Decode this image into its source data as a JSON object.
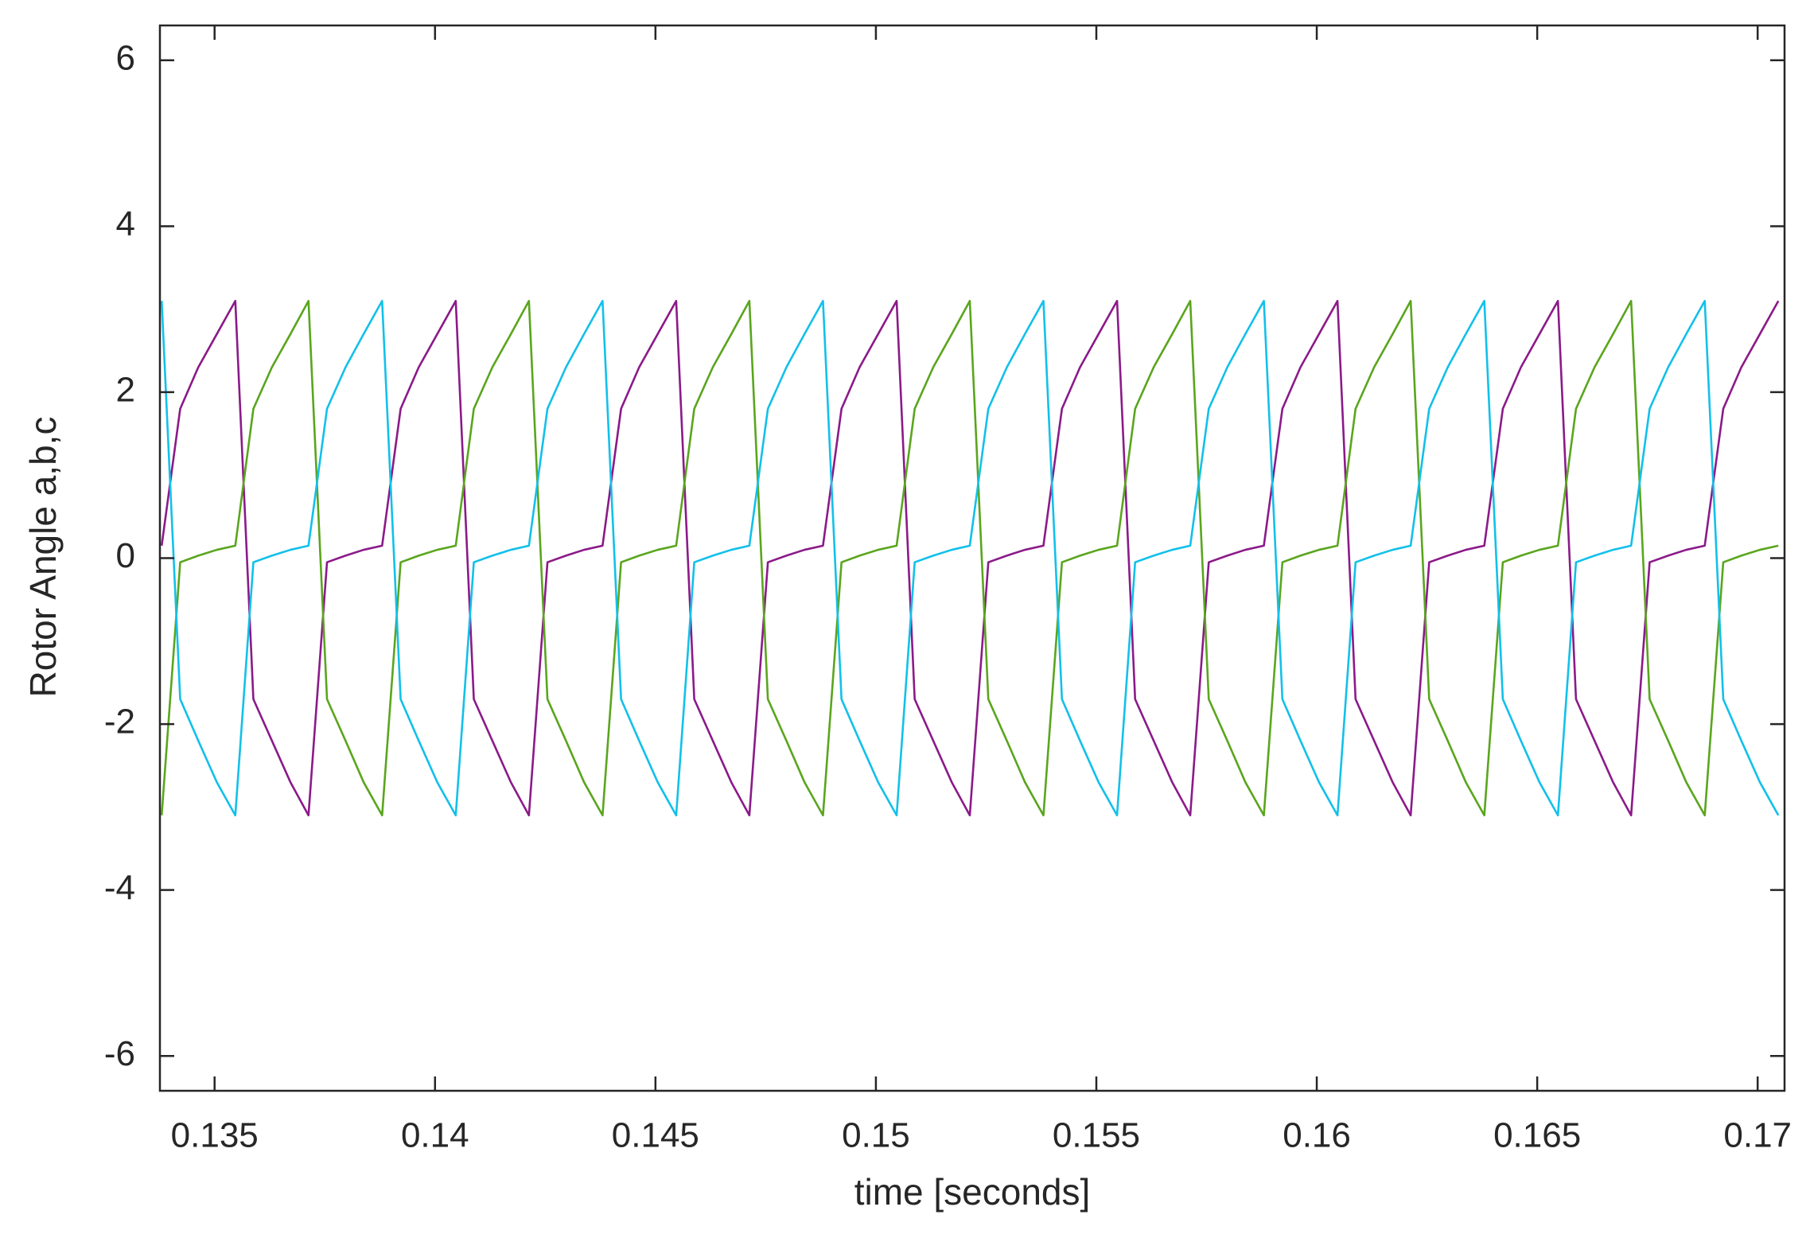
{
  "chart_data": {
    "type": "line",
    "x_label": "time [seconds]",
    "y_label": "Rotor Angle a,b,c",
    "x": [
      0.1338,
      0.13422,
      0.13463,
      0.13505,
      0.13547,
      0.13588,
      0.1363,
      0.13672,
      0.13713,
      0.13755,
      0.13797,
      0.13838,
      0.1388,
      0.13922,
      0.13963,
      0.14005,
      0.14047,
      0.14088,
      0.1413,
      0.14172,
      0.14213,
      0.14255,
      0.14297,
      0.14338,
      0.1438,
      0.14422,
      0.14463,
      0.14505,
      0.14547,
      0.14588,
      0.1463,
      0.14672,
      0.14713,
      0.14755,
      0.14797,
      0.14838,
      0.1488,
      0.14922,
      0.14963,
      0.15005,
      0.15047,
      0.15088,
      0.1513,
      0.15172,
      0.15213,
      0.15255,
      0.15297,
      0.15338,
      0.1538,
      0.15422,
      0.15463,
      0.15505,
      0.15547,
      0.15588,
      0.1563,
      0.15672,
      0.15713,
      0.15755,
      0.15797,
      0.15838,
      0.1588,
      0.15922,
      0.15963,
      0.16005,
      0.16047,
      0.16088,
      0.1613,
      0.16172,
      0.16213,
      0.16255,
      0.16297,
      0.16338,
      0.1638,
      0.16422,
      0.16463,
      0.16505,
      0.16547,
      0.16588,
      0.1663,
      0.16672,
      0.16713,
      0.16755,
      0.16797,
      0.16838,
      0.1688,
      0.16922,
      0.16963,
      0.17005,
      0.17047
    ],
    "series": [
      {
        "color": "#8b1a89",
        "values": [
          0.15,
          1.8,
          2.3,
          2.7,
          3.1,
          -1.7,
          -2.2,
          -2.7,
          -3.1,
          -0.05,
          0.03,
          0.1,
          0.15,
          1.8,
          2.3,
          2.7,
          3.1,
          -1.7,
          -2.2,
          -2.7,
          -3.1,
          -0.05,
          0.03,
          0.1,
          0.15,
          1.8,
          2.3,
          2.7,
          3.1,
          -1.7,
          -2.2,
          -2.7,
          -3.1,
          -0.05,
          0.03,
          0.1,
          0.15,
          1.8,
          2.3,
          2.7,
          3.1,
          -1.7,
          -2.2,
          -2.7,
          -3.1,
          -0.05,
          0.03,
          0.1,
          0.15,
          1.8,
          2.3,
          2.7,
          3.1,
          -1.7,
          -2.2,
          -2.7,
          -3.1,
          -0.05,
          0.03,
          0.1,
          0.15,
          1.8,
          2.3,
          2.7,
          3.1,
          -1.7,
          -2.2,
          -2.7,
          -3.1,
          -0.05,
          0.03,
          0.1,
          0.15,
          1.8,
          2.3,
          2.7,
          3.1,
          -1.7,
          -2.2,
          -2.7,
          -3.1,
          -0.05,
          0.03,
          0.1,
          0.15,
          1.8,
          2.3,
          2.7,
          3.1
        ]
      },
      {
        "color": "#5aa51e",
        "values": [
          -3.1,
          -0.05,
          0.03,
          0.1,
          0.15,
          1.8,
          2.3,
          2.7,
          3.1,
          -1.7,
          -2.2,
          -2.7,
          -3.1,
          -0.05,
          0.03,
          0.1,
          0.15,
          1.8,
          2.3,
          2.7,
          3.1,
          -1.7,
          -2.2,
          -2.7,
          -3.1,
          -0.05,
          0.03,
          0.1,
          0.15,
          1.8,
          2.3,
          2.7,
          3.1,
          -1.7,
          -2.2,
          -2.7,
          -3.1,
          -0.05,
          0.03,
          0.1,
          0.15,
          1.8,
          2.3,
          2.7,
          3.1,
          -1.7,
          -2.2,
          -2.7,
          -3.1,
          -0.05,
          0.03,
          0.1,
          0.15,
          1.8,
          2.3,
          2.7,
          3.1,
          -1.7,
          -2.2,
          -2.7,
          -3.1,
          -0.05,
          0.03,
          0.1,
          0.15,
          1.8,
          2.3,
          2.7,
          3.1,
          -1.7,
          -2.2,
          -2.7,
          -3.1,
          -0.05,
          0.03,
          0.1,
          0.15,
          1.8,
          2.3,
          2.7,
          3.1,
          -1.7,
          -2.2,
          -2.7,
          -3.1,
          -0.05,
          0.03,
          0.1,
          0.15
        ]
      },
      {
        "color": "#12c0ea",
        "values": [
          3.1,
          -1.7,
          -2.2,
          -2.7,
          -3.1,
          -0.05,
          0.03,
          0.1,
          0.15,
          1.8,
          2.3,
          2.7,
          3.1,
          -1.7,
          -2.2,
          -2.7,
          -3.1,
          -0.05,
          0.03,
          0.1,
          0.15,
          1.8,
          2.3,
          2.7,
          3.1,
          -1.7,
          -2.2,
          -2.7,
          -3.1,
          -0.05,
          0.03,
          0.1,
          0.15,
          1.8,
          2.3,
          2.7,
          3.1,
          -1.7,
          -2.2,
          -2.7,
          -3.1,
          -0.05,
          0.03,
          0.1,
          0.15,
          1.8,
          2.3,
          2.7,
          3.1,
          -1.7,
          -2.2,
          -2.7,
          -3.1,
          -0.05,
          0.03,
          0.1,
          0.15,
          1.8,
          2.3,
          2.7,
          3.1,
          -1.7,
          -2.2,
          -2.7,
          -3.1,
          -0.05,
          0.03,
          0.1,
          0.15,
          1.8,
          2.3,
          2.7,
          3.1,
          -1.7,
          -2.2,
          -2.7,
          -3.1,
          -0.05,
          0.03,
          0.1,
          0.15,
          1.8,
          2.3,
          2.7,
          3.1,
          -1.7,
          -2.2,
          -2.7,
          -3.1
        ]
      }
    ],
    "xlim": [
      0.13376,
      0.17061
    ],
    "xticks": [
      0.135,
      0.14,
      0.145,
      0.15,
      0.155,
      0.16,
      0.165,
      0.17
    ],
    "ylim": [
      -6.42,
      6.42
    ],
    "yticks": [
      -6,
      -4,
      -2,
      0,
      2,
      4,
      6
    ],
    "grid": false
  }
}
